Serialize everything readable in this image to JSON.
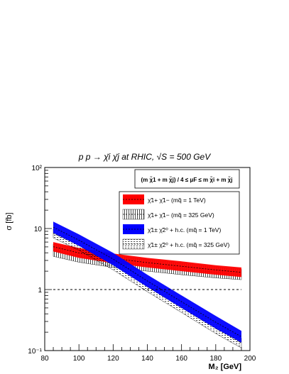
{
  "chart_data": {
    "type": "area",
    "title": "p p → χ̄i χ̄j at RHIC, √S = 500 GeV",
    "xlabel": "M₂ [GeV]",
    "ylabel": "σ [fb]",
    "xlim": [
      80,
      200
    ],
    "ylim": [
      0.1,
      100
    ],
    "yscale": "log",
    "x_ticks": [
      "80",
      "100",
      "120",
      "140",
      "160",
      "180",
      "200"
    ],
    "y_ticks": [
      "10⁻¹",
      "1",
      "10",
      "10²"
    ],
    "reference_line": {
      "y": 1,
      "style": "dashed"
    },
    "scale_annotation": "(m χ̃1 + m χ̃j) / 4 ≤ μF ≤ m χ̃i + m χ̃j",
    "legend_position": "top-right",
    "series": [
      {
        "name": "χ̃1+ χ̃1− (mq̃ = 1 TeV)",
        "style": "solid",
        "color": "#ff0000",
        "x": [
          85,
          100,
          120,
          140,
          160,
          180,
          195
        ],
        "upper": [
          6.0,
          4.8,
          3.9,
          3.3,
          2.9,
          2.5,
          2.3
        ],
        "lower": [
          4.2,
          3.3,
          2.7,
          2.3,
          2.0,
          1.75,
          1.6
        ]
      },
      {
        "name": "χ̃1+ χ̃1− (mq̃ = 325 GeV)",
        "style": "vertical-hatch",
        "color": "#000000",
        "x": [
          85,
          100,
          120,
          140,
          160,
          180,
          195
        ],
        "upper": [
          5.6,
          4.5,
          3.6,
          3.1,
          2.7,
          2.35,
          2.15
        ],
        "lower": [
          3.5,
          2.8,
          2.3,
          2.0,
          1.75,
          1.55,
          1.45
        ]
      },
      {
        "name": "χ̃1± χ̃2⁰ + h.c. (mq̃ = 1 TeV)",
        "style": "solid",
        "color": "#0000ff",
        "x": [
          85,
          100,
          120,
          140,
          160,
          180,
          195
        ],
        "upper": [
          13.0,
          8.0,
          4.0,
          1.75,
          0.8,
          0.37,
          0.21
        ],
        "lower": [
          8.5,
          5.2,
          2.5,
          1.1,
          0.5,
          0.23,
          0.135
        ]
      },
      {
        "name": "χ̃1± χ̃2⁰ + h.c. (mq̃ = 325 GeV)",
        "style": "dotted-hatch",
        "color": "#000000",
        "x": [
          85,
          100,
          120,
          140,
          160,
          180,
          195
        ],
        "upper": [
          10.0,
          6.3,
          3.1,
          1.35,
          0.6,
          0.28,
          0.16
        ],
        "lower": [
          7.0,
          4.4,
          2.1,
          0.92,
          0.42,
          0.19,
          0.11
        ]
      }
    ]
  }
}
